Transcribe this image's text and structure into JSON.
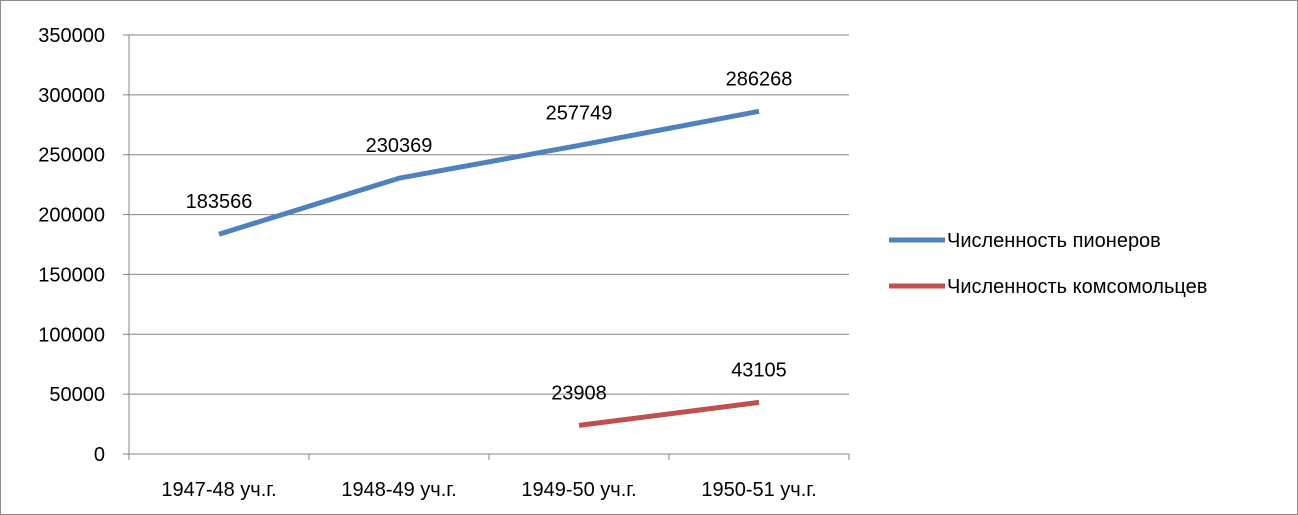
{
  "chart_data": {
    "type": "line",
    "title": "",
    "xlabel": "",
    "ylabel": "",
    "categories": [
      "1947-48 уч.г.",
      "1948-49 уч.г.",
      "1949-50 уч.г.",
      "1950-51 уч.г."
    ],
    "ylim": [
      0,
      350000
    ],
    "yticks": [
      "0",
      "50000",
      "100000",
      "150000",
      "200000",
      "250000",
      "300000",
      "350000"
    ],
    "grid": true,
    "legend_position": "right",
    "series": [
      {
        "name": "Численность пионеров",
        "color": "#4f81bd",
        "values": [
          183566,
          230369,
          257749,
          286268
        ],
        "labels": [
          "183566",
          "230369",
          "257749",
          "286268"
        ]
      },
      {
        "name": "Численность комсомольцев",
        "color": "#c0504d",
        "values": [
          null,
          null,
          23908,
          43105
        ],
        "labels": [
          null,
          null,
          "23908",
          "43105"
        ]
      }
    ]
  }
}
